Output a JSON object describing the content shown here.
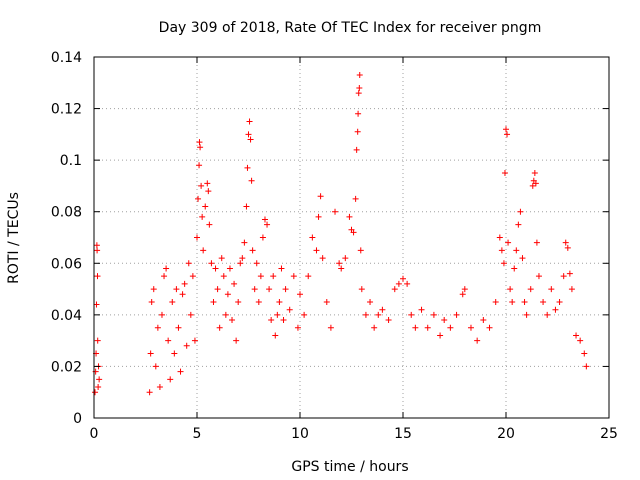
{
  "chart_data": {
    "type": "scatter",
    "title": "Day 309 of 2018, Rate Of TEC Index for receiver pngm",
    "xlabel": "GPS time / hours",
    "ylabel": "ROTI / TECUs",
    "xlim": [
      0,
      25
    ],
    "ylim": [
      0,
      0.14
    ],
    "xticks": [
      0,
      5,
      10,
      15,
      20,
      25
    ],
    "xtick_labels": [
      "0",
      "5",
      "10",
      "15",
      "20",
      "25"
    ],
    "yticks": [
      0,
      0.02,
      0.04,
      0.06,
      0.08,
      0.1,
      0.12,
      0.14
    ],
    "ytick_labels": [
      "0",
      "0.02",
      "0.04",
      "0.06",
      "0.08",
      "0.1",
      "0.12",
      "0.14"
    ],
    "grid": true,
    "marker": "+",
    "color": "#ff0000",
    "series": [
      {
        "name": "ROTI",
        "points": [
          [
            0.05,
            0.01
          ],
          [
            0.08,
            0.018
          ],
          [
            0.1,
            0.025
          ],
          [
            0.12,
            0.044
          ],
          [
            0.14,
            0.067
          ],
          [
            0.15,
            0.065
          ],
          [
            0.17,
            0.055
          ],
          [
            0.18,
            0.03
          ],
          [
            0.2,
            0.012
          ],
          [
            0.22,
            0.02
          ],
          [
            0.25,
            0.015
          ],
          [
            2.7,
            0.01
          ],
          [
            2.75,
            0.025
          ],
          [
            2.8,
            0.045
          ],
          [
            2.9,
            0.05
          ],
          [
            3.0,
            0.02
          ],
          [
            3.1,
            0.035
          ],
          [
            3.2,
            0.012
          ],
          [
            3.3,
            0.04
          ],
          [
            3.4,
            0.055
          ],
          [
            3.5,
            0.058
          ],
          [
            3.6,
            0.03
          ],
          [
            3.7,
            0.015
          ],
          [
            3.8,
            0.045
          ],
          [
            3.9,
            0.025
          ],
          [
            4.0,
            0.05
          ],
          [
            4.1,
            0.035
          ],
          [
            4.2,
            0.018
          ],
          [
            4.3,
            0.048
          ],
          [
            4.4,
            0.052
          ],
          [
            4.5,
            0.028
          ],
          [
            4.6,
            0.06
          ],
          [
            4.7,
            0.04
          ],
          [
            4.8,
            0.055
          ],
          [
            4.9,
            0.03
          ],
          [
            5.0,
            0.07
          ],
          [
            5.05,
            0.085
          ],
          [
            5.1,
            0.098
          ],
          [
            5.12,
            0.107
          ],
          [
            5.15,
            0.105
          ],
          [
            5.2,
            0.09
          ],
          [
            5.25,
            0.078
          ],
          [
            5.3,
            0.065
          ],
          [
            5.4,
            0.082
          ],
          [
            5.5,
            0.091
          ],
          [
            5.55,
            0.088
          ],
          [
            5.6,
            0.075
          ],
          [
            5.7,
            0.06
          ],
          [
            5.8,
            0.045
          ],
          [
            5.9,
            0.058
          ],
          [
            6.0,
            0.05
          ],
          [
            6.1,
            0.035
          ],
          [
            6.2,
            0.062
          ],
          [
            6.3,
            0.055
          ],
          [
            6.4,
            0.04
          ],
          [
            6.5,
            0.048
          ],
          [
            6.6,
            0.058
          ],
          [
            6.7,
            0.038
          ],
          [
            6.8,
            0.052
          ],
          [
            6.9,
            0.03
          ],
          [
            7.0,
            0.045
          ],
          [
            7.1,
            0.06
          ],
          [
            7.2,
            0.062
          ],
          [
            7.3,
            0.068
          ],
          [
            7.4,
            0.082
          ],
          [
            7.45,
            0.097
          ],
          [
            7.5,
            0.11
          ],
          [
            7.55,
            0.115
          ],
          [
            7.6,
            0.108
          ],
          [
            7.65,
            0.092
          ],
          [
            7.7,
            0.065
          ],
          [
            7.8,
            0.05
          ],
          [
            7.9,
            0.06
          ],
          [
            8.0,
            0.045
          ],
          [
            8.1,
            0.055
          ],
          [
            8.2,
            0.07
          ],
          [
            8.3,
            0.077
          ],
          [
            8.4,
            0.075
          ],
          [
            8.5,
            0.05
          ],
          [
            8.6,
            0.038
          ],
          [
            8.7,
            0.055
          ],
          [
            8.8,
            0.032
          ],
          [
            8.9,
            0.04
          ],
          [
            9.0,
            0.045
          ],
          [
            9.1,
            0.058
          ],
          [
            9.2,
            0.038
          ],
          [
            9.3,
            0.05
          ],
          [
            9.5,
            0.042
          ],
          [
            9.7,
            0.055
          ],
          [
            9.9,
            0.035
          ],
          [
            10.0,
            0.048
          ],
          [
            10.2,
            0.04
          ],
          [
            10.4,
            0.055
          ],
          [
            10.6,
            0.07
          ],
          [
            10.8,
            0.065
          ],
          [
            10.9,
            0.078
          ],
          [
            11.0,
            0.086
          ],
          [
            11.1,
            0.062
          ],
          [
            11.3,
            0.045
          ],
          [
            11.5,
            0.035
          ],
          [
            11.7,
            0.08
          ],
          [
            11.9,
            0.06
          ],
          [
            12.0,
            0.058
          ],
          [
            12.2,
            0.062
          ],
          [
            12.4,
            0.078
          ],
          [
            12.5,
            0.073
          ],
          [
            12.6,
            0.072
          ],
          [
            12.7,
            0.085
          ],
          [
            12.75,
            0.104
          ],
          [
            12.8,
            0.111
          ],
          [
            12.82,
            0.118
          ],
          [
            12.85,
            0.126
          ],
          [
            12.88,
            0.128
          ],
          [
            12.9,
            0.133
          ],
          [
            12.95,
            0.065
          ],
          [
            13.0,
            0.05
          ],
          [
            13.2,
            0.04
          ],
          [
            13.4,
            0.045
          ],
          [
            13.6,
            0.035
          ],
          [
            13.8,
            0.04
          ],
          [
            14.0,
            0.042
          ],
          [
            14.3,
            0.038
          ],
          [
            14.6,
            0.05
          ],
          [
            14.8,
            0.052
          ],
          [
            15.0,
            0.054
          ],
          [
            15.2,
            0.052
          ],
          [
            15.4,
            0.04
          ],
          [
            15.6,
            0.035
          ],
          [
            15.9,
            0.042
          ],
          [
            16.2,
            0.035
          ],
          [
            16.5,
            0.04
          ],
          [
            16.8,
            0.032
          ],
          [
            17.0,
            0.038
          ],
          [
            17.3,
            0.035
          ],
          [
            17.6,
            0.04
          ],
          [
            17.9,
            0.048
          ],
          [
            18.0,
            0.05
          ],
          [
            18.3,
            0.035
          ],
          [
            18.6,
            0.03
          ],
          [
            18.9,
            0.038
          ],
          [
            19.2,
            0.035
          ],
          [
            19.5,
            0.045
          ],
          [
            19.7,
            0.07
          ],
          [
            19.8,
            0.065
          ],
          [
            19.9,
            0.06
          ],
          [
            19.95,
            0.095
          ],
          [
            20.0,
            0.112
          ],
          [
            20.05,
            0.11
          ],
          [
            20.1,
            0.068
          ],
          [
            20.2,
            0.05
          ],
          [
            20.3,
            0.045
          ],
          [
            20.4,
            0.058
          ],
          [
            20.5,
            0.065
          ],
          [
            20.6,
            0.075
          ],
          [
            20.7,
            0.08
          ],
          [
            20.8,
            0.062
          ],
          [
            20.9,
            0.045
          ],
          [
            21.0,
            0.04
          ],
          [
            21.2,
            0.05
          ],
          [
            21.3,
            0.09
          ],
          [
            21.35,
            0.092
          ],
          [
            21.4,
            0.095
          ],
          [
            21.45,
            0.091
          ],
          [
            21.5,
            0.068
          ],
          [
            21.6,
            0.055
          ],
          [
            21.8,
            0.045
          ],
          [
            22.0,
            0.04
          ],
          [
            22.2,
            0.05
          ],
          [
            22.4,
            0.042
          ],
          [
            22.6,
            0.045
          ],
          [
            22.8,
            0.055
          ],
          [
            22.9,
            0.068
          ],
          [
            23.0,
            0.066
          ],
          [
            23.1,
            0.056
          ],
          [
            23.2,
            0.05
          ],
          [
            23.4,
            0.032
          ],
          [
            23.6,
            0.03
          ],
          [
            23.8,
            0.025
          ],
          [
            23.9,
            0.02
          ]
        ]
      }
    ]
  }
}
